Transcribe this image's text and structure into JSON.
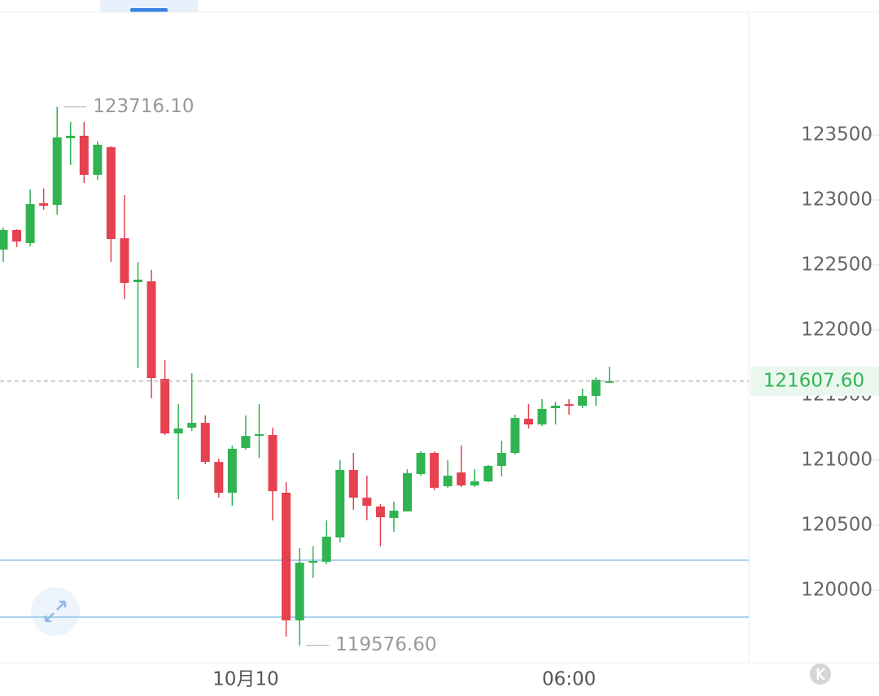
{
  "chart_data": {
    "type": "candlestick",
    "categories": [
      null,
      null,
      null,
      null,
      null,
      null,
      null,
      null,
      null,
      null,
      null,
      null,
      null,
      null,
      null,
      null,
      null,
      null,
      "10月10",
      null,
      null,
      null,
      null,
      null,
      null,
      null,
      null,
      null,
      null,
      null,
      null,
      null,
      null,
      null,
      null,
      null,
      null,
      null,
      null,
      null,
      null,
      null,
      "06:00",
      null,
      null,
      null
    ],
    "open": [
      122619,
      122769,
      122669,
      122975,
      122963,
      123475,
      123494,
      123194,
      123406,
      122706,
      122369,
      122375,
      121625,
      121206,
      121250,
      121287,
      120987,
      120750,
      121094,
      121194,
      121194,
      120750,
      119769,
      120212,
      120219,
      120406,
      120925,
      120712,
      120644,
      120556,
      120606,
      120894,
      121056,
      120800,
      120906,
      120806,
      120837,
      120956,
      121056,
      121319,
      121275,
      121400,
      121431,
      121419,
      121494,
      121600
    ],
    "high": [
      122788,
      122775,
      123081,
      123088,
      123716.1,
      123600,
      123600,
      123450,
      123413,
      123038,
      122525,
      122463,
      121769,
      121431,
      121669,
      121344,
      121012,
      121112,
      121344,
      121431,
      121250,
      120831,
      120325,
      120338,
      120537,
      121000,
      121056,
      120881,
      120662,
      120681,
      120931,
      121069,
      121069,
      121000,
      121112,
      120931,
      120962,
      121150,
      121350,
      121431,
      121469,
      121450,
      121469,
      121550,
      121637,
      121719
    ],
    "low": [
      122525,
      122638,
      122644,
      122925,
      122888,
      123269,
      123131,
      123156,
      122525,
      122238,
      121706,
      121475,
      121194,
      120700,
      121225,
      120969,
      120712,
      120650,
      121081,
      121019,
      120537,
      119644,
      119576.6,
      120094,
      120200,
      120369,
      120619,
      120538,
      120338,
      120450,
      120606,
      120881,
      120769,
      120788,
      120794,
      120794,
      120831,
      120875,
      121044,
      121244,
      121262,
      121275,
      121350,
      121400,
      121419,
      121594
    ],
    "close": [
      122769,
      122681,
      122969,
      122956,
      123481,
      123494,
      123194,
      123425,
      122700,
      122363,
      122388,
      121631,
      121206,
      121244,
      121287,
      120987,
      120750,
      121088,
      121187,
      121200,
      120762,
      119769,
      120212,
      120225,
      120412,
      120925,
      120712,
      120650,
      120562,
      120612,
      120900,
      121056,
      120788,
      120881,
      120806,
      120837,
      120956,
      121056,
      121325,
      121275,
      121394,
      121419,
      121419,
      121494,
      121619,
      121607.6
    ],
    "up_color": "#2fb451",
    "down_color": "#e5414f",
    "ylim": [
      119443.75,
      124443.75
    ],
    "yticks": [
      120000,
      120500,
      121000,
      121500,
      122000,
      122500,
      123000,
      123500
    ],
    "annotations": [
      {
        "value": 123716.1,
        "label": "123716.10"
      },
      {
        "value": 119576.6,
        "label": "119576.60"
      }
    ],
    "last_price": {
      "value": 121607.6,
      "label": "121607.60"
    },
    "hlines": [
      120231,
      119794
    ],
    "hline_color": "#8ec3e8"
  }
}
